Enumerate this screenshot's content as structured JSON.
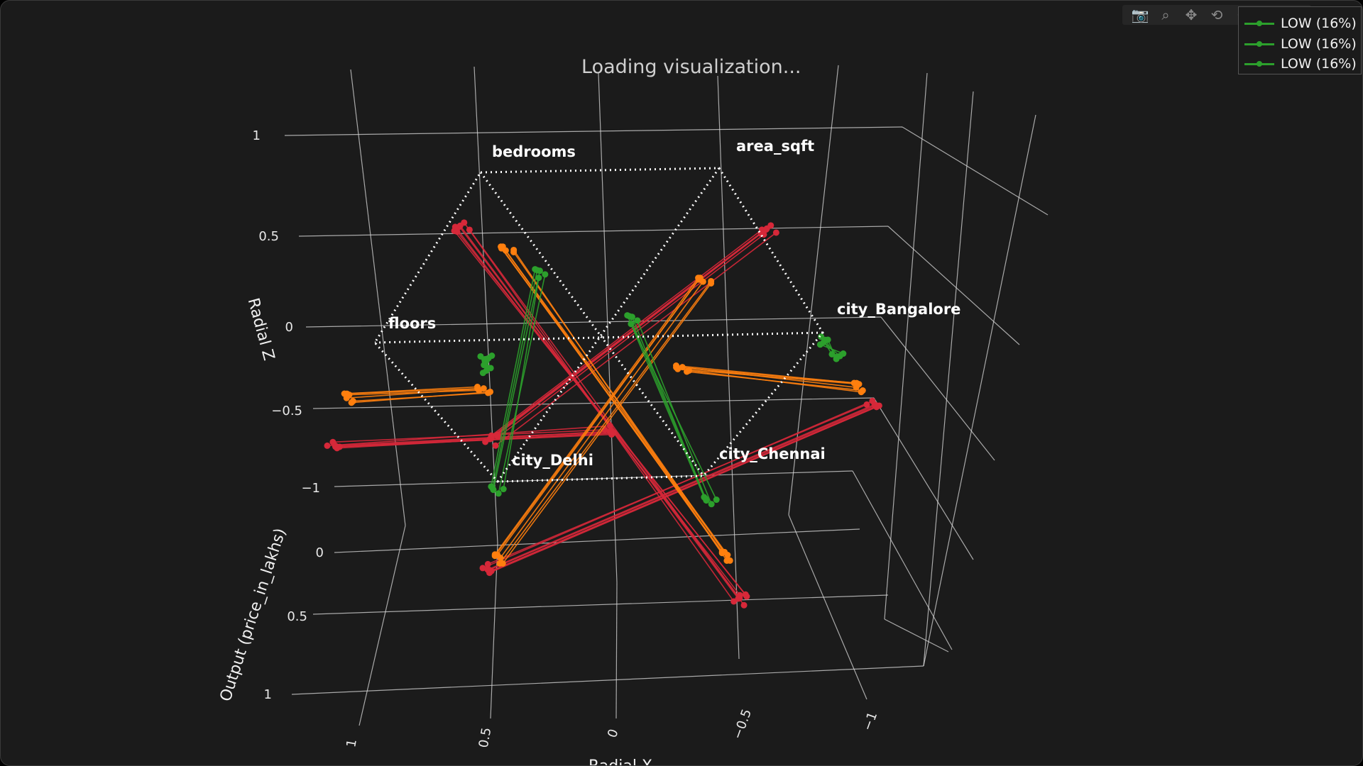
{
  "status_text": "Loading visualization...",
  "modebar": [
    {
      "name": "camera-icon",
      "glyph": "📷"
    },
    {
      "name": "zoom-icon",
      "glyph": "⌕"
    },
    {
      "name": "pan-icon",
      "glyph": "✥"
    },
    {
      "name": "orbit-rotation-icon",
      "glyph": "⟲"
    },
    {
      "name": "turntable-rotation-icon",
      "glyph": "⥁"
    },
    {
      "name": "reset-camera-icon",
      "glyph": "⌂"
    },
    {
      "name": "hover-icon",
      "glyph": "☐"
    }
  ],
  "legend": {
    "color": "#2ca02c",
    "items": [
      "LOW (16%)",
      "LOW (16%)",
      "LOW (16%)"
    ]
  },
  "chart_data": {
    "type": "scatter3d",
    "axes": {
      "x": {
        "title": "Radial X",
        "ticks": [
          "1",
          "0.5",
          "0",
          "−0.5",
          "−1"
        ],
        "range": [
          1,
          -1
        ]
      },
      "y": {
        "title": "Output (price_in_lakhs)",
        "ticks": [
          "0",
          "0.5",
          "1"
        ],
        "range": [
          0,
          1
        ]
      },
      "z": {
        "title": "Radial Z",
        "ticks": [
          "1",
          "0.5",
          "0",
          "−0.5",
          "−1"
        ],
        "range": [
          -1,
          1
        ]
      }
    },
    "grid": true,
    "feature_axes": [
      {
        "label": "bedrooms",
        "x": 0.5,
        "z": 0.87
      },
      {
        "label": "area_sqft",
        "x": -0.5,
        "z": 0.87
      },
      {
        "label": "city_Bangalore",
        "x": -1,
        "z": 0
      },
      {
        "label": "city_Chennai",
        "x": -0.5,
        "z": -0.87
      },
      {
        "label": "city_Delhi",
        "x": 0.5,
        "z": -0.87
      },
      {
        "label": "floors",
        "x": 1,
        "z": 0
      }
    ],
    "series": [
      {
        "color": "#d62839",
        "lines": 14,
        "output_range": [
          0.6,
          1.0
        ]
      },
      {
        "color": "#ff7f0e",
        "lines": 12,
        "output_range": [
          0.3,
          0.6
        ]
      },
      {
        "color": "#2ca02c",
        "lines": 10,
        "output_range": [
          0.0,
          0.3
        ]
      }
    ]
  }
}
